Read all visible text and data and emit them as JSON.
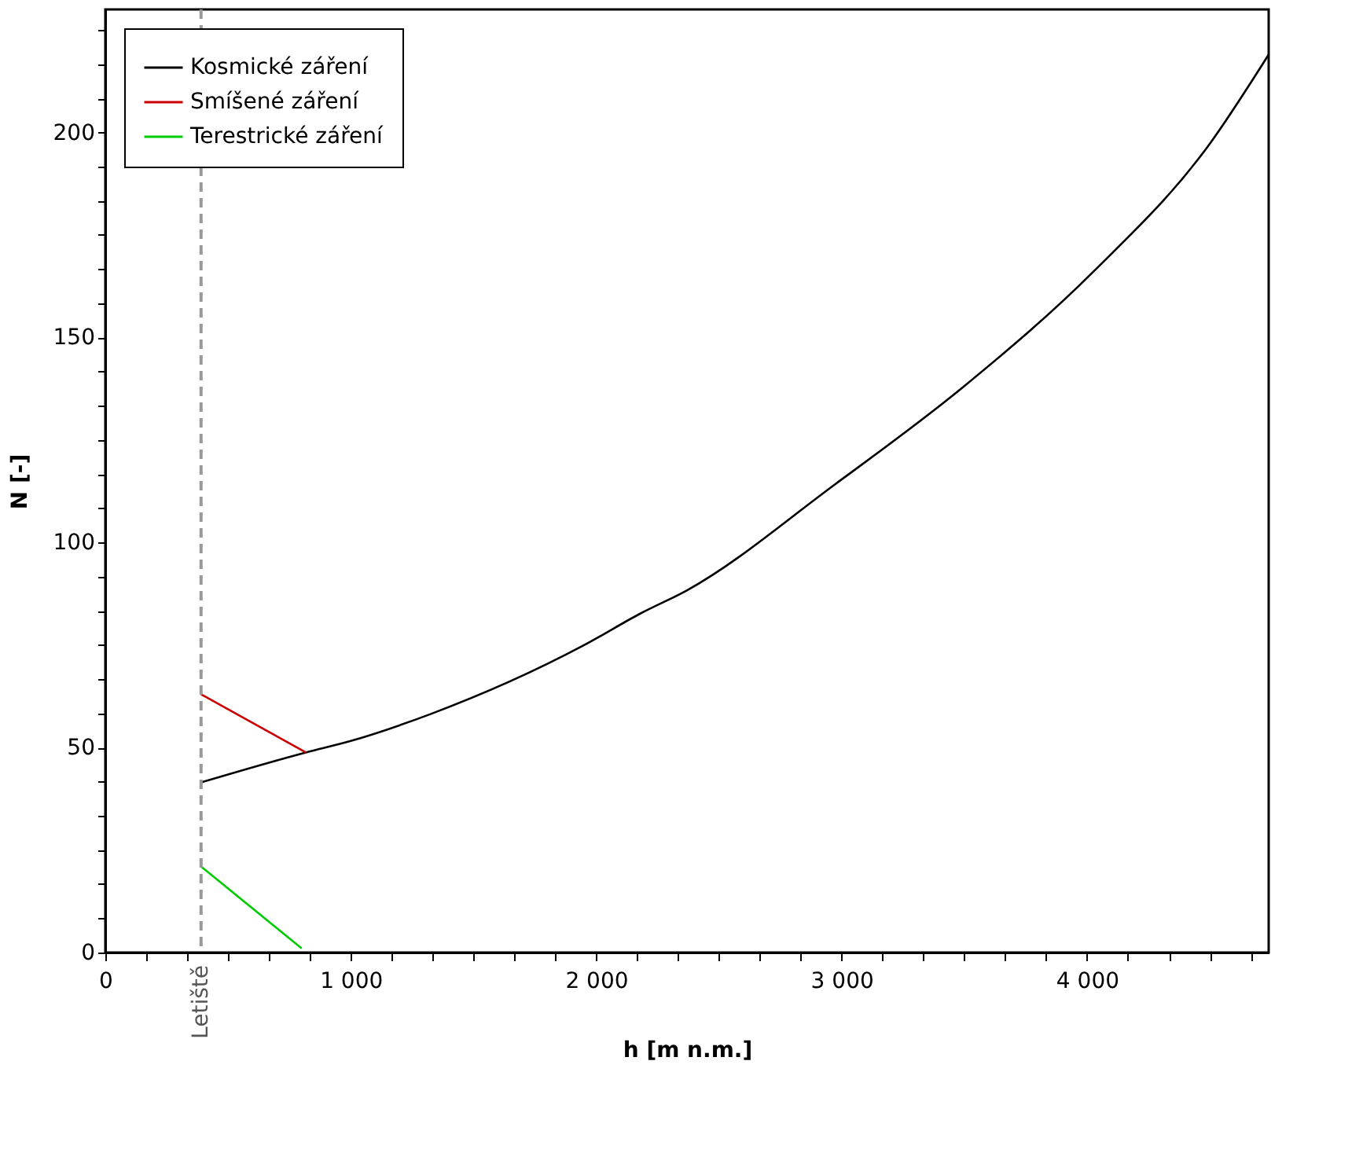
{
  "chart_data": {
    "type": "line",
    "xlabel": "h [m n.m.]",
    "ylabel": "N [-]",
    "xlim": [
      0,
      4740
    ],
    "ylim": [
      0,
      230
    ],
    "xticks": [
      0,
      {
        "value": 166.7,
        "label": null
      },
      {
        "value": 333.3,
        "label": null
      },
      {
        "value": 500,
        "label": null
      },
      {
        "value": 666.7,
        "label": null
      },
      {
        "value": 833.3,
        "label": null
      },
      {
        "value": 1000,
        "label": "1 000"
      },
      {
        "value": 1166.7,
        "label": null
      },
      {
        "value": 1333.3,
        "label": null
      },
      {
        "value": 1500,
        "label": null
      },
      {
        "value": 1666.7,
        "label": null
      },
      {
        "value": 1833.3,
        "label": null
      },
      {
        "value": 2000,
        "label": "2 000"
      },
      {
        "value": 2166.7,
        "label": null
      },
      {
        "value": 2333.3,
        "label": null
      },
      {
        "value": 2500,
        "label": null
      },
      {
        "value": 2666.7,
        "label": null
      },
      {
        "value": 2833.3,
        "label": null
      },
      {
        "value": 3000,
        "label": "3 000"
      },
      {
        "value": 3166.7,
        "label": null
      },
      {
        "value": 3333.3,
        "label": null
      },
      {
        "value": 3500,
        "label": null
      },
      {
        "value": 3666.7,
        "label": null
      },
      {
        "value": 3833.3,
        "label": null
      },
      {
        "value": 4000,
        "label": "4 000"
      },
      {
        "value": 4166.7,
        "label": null
      },
      {
        "value": 4333.3,
        "label": null
      },
      {
        "value": 4500,
        "label": null
      },
      {
        "value": 4666.7,
        "label": null
      }
    ],
    "yticks": [
      0,
      {
        "value": 8.3,
        "label": null
      },
      {
        "value": 16.7,
        "label": null
      },
      {
        "value": 25,
        "label": null
      },
      {
        "value": 33.3,
        "label": null
      },
      {
        "value": 41.7,
        "label": null
      },
      50,
      {
        "value": 58.3,
        "label": null
      },
      {
        "value": 66.7,
        "label": null
      },
      {
        "value": 75,
        "label": null
      },
      {
        "value": 83.3,
        "label": null
      },
      {
        "value": 91.7,
        "label": null
      },
      100,
      {
        "value": 108.3,
        "label": null
      },
      {
        "value": 116.7,
        "label": null
      },
      {
        "value": 125,
        "label": null
      },
      {
        "value": 133.3,
        "label": null
      },
      {
        "value": 141.7,
        "label": null
      },
      150,
      {
        "value": 158.3,
        "label": null
      },
      {
        "value": 166.7,
        "label": null
      },
      {
        "value": 175,
        "label": null
      },
      {
        "value": 183.3,
        "label": null
      },
      {
        "value": 191.7,
        "label": null
      },
      200,
      {
        "value": 208.3,
        "label": null
      },
      {
        "value": 216.7,
        "label": null
      },
      {
        "value": 225,
        "label": null
      }
    ],
    "series": [
      {
        "name": "Kosmické záření",
        "color": "#000000",
        "x": [
          390,
          817,
          1000,
          1327,
          1952,
          2181,
          2369,
          2969,
          3497,
          4025,
          4497,
          4740
        ],
        "values": [
          41.5,
          48.8,
          51.6,
          58.2,
          75,
          82.7,
          88.3,
          114,
          138,
          166,
          197,
          219
        ]
      },
      {
        "name": "Smíšené záření",
        "color": "#cc0000",
        "x": [
          390,
          817
        ],
        "values": [
          63,
          48.8
        ]
      },
      {
        "name": "Terestrické záření",
        "color": "#00cc00",
        "x": [
          390,
          800
        ],
        "values": [
          21,
          1
        ]
      }
    ],
    "ref_lines": [
      {
        "axis": "x",
        "value": 390,
        "label": "Letiště",
        "color": "#999999",
        "line_style": "dashed"
      }
    ],
    "legend": "top left",
    "grid": false,
    "marker": "none",
    "line_style": "solid"
  }
}
